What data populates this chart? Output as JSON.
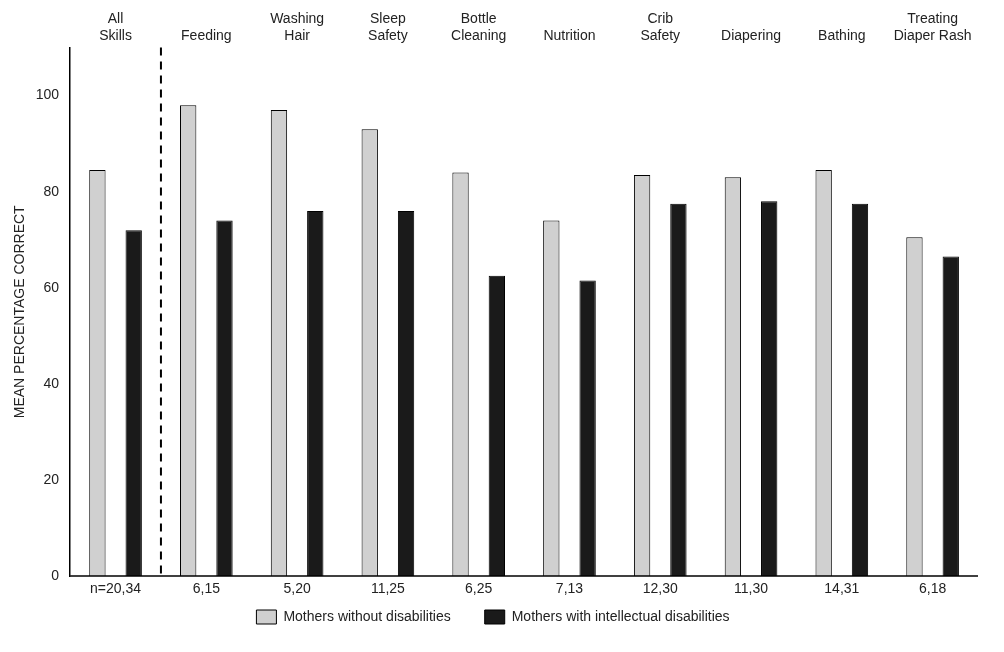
{
  "chart_data": {
    "type": "bar",
    "ylabel": "MEAN PERCENTAGE CORRECT",
    "categories": [
      "All Skills",
      "Feeding",
      "Washing Hair",
      "Sleep Safety",
      "Bottle Cleaning",
      "Nutrition",
      "Crib Safety",
      "Diapering",
      "Bathing",
      "Treating Diaper Rash"
    ],
    "series": [
      {
        "name": "Mothers without disabilities",
        "color": "#d0d0d0",
        "values": [
          84.5,
          98,
          97,
          93,
          84,
          74,
          83.5,
          83,
          84.5,
          70.5
        ]
      },
      {
        "name": "Mothers with intellectual disabilities",
        "color": "#1a1a1a",
        "values": [
          72,
          74,
          76,
          76,
          62.5,
          61.5,
          77.5,
          78,
          77.5,
          66.5
        ]
      }
    ],
    "ylim": [
      0,
      110
    ],
    "yticks": [
      0,
      20,
      40,
      60,
      80,
      100
    ],
    "grid": false,
    "legend": "bottom",
    "annotations": [
      "n=20,34",
      "6,15",
      "5,20",
      "11,25",
      "6,25",
      "7,13",
      "12,30",
      "11,30",
      "14,31",
      "6,18"
    ]
  }
}
